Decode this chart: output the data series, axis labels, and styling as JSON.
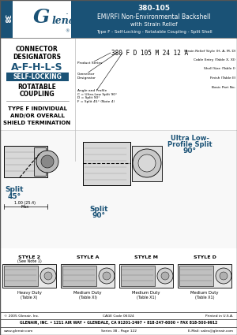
{
  "page_bg": "#ffffff",
  "header_blue": "#1a5276",
  "header_text_color": "#ffffff",
  "tab_text": "38",
  "logo_text": "Glenair",
  "title_line1": "380-105",
  "title_line2": "EMI/RFI Non-Environmental Backshell",
  "title_line3": "with Strain Relief",
  "title_line4": "Type F - Self-Locking - Rotatable Coupling - Split Shell",
  "left_heading1": "CONNECTOR",
  "left_heading2": "DESIGNATORS",
  "designators": "A-F-H-L-S",
  "self_locking_text": "SELF-LOCKING",
  "rotatable": "ROTATABLE",
  "coupling": "COUPLING",
  "type_f_line1": "TYPE F INDIVIDUAL",
  "type_f_line2": "AND/OR OVERALL",
  "type_f_line3": "SHIELD TERMINATION",
  "part_number_label": "380 F D 105 M 24 12 A",
  "pn_arrows_left": [
    "Product Series",
    "Connector\nDesignator",
    "Angle and Profile\nC = Ultra-Low Split 90°\nD = Split 90°\nF = Split 45° (Note 4)"
  ],
  "pn_arrows_right": [
    "Strain Relief Style (H, A, M, D)",
    "Cable Entry (Table X, XI)",
    "Shell Size (Table I)",
    "Finish (Table II)",
    "Basic Part No."
  ],
  "footer_copyright": "© 2005 Glenair, Inc.",
  "footer_cage": "CAGE Code 06324",
  "footer_printed": "Printed in U.S.A.",
  "footer_company": "GLENAIR, INC. • 1211 AIR WAY • GLENDALE, CA 91201-2497 • 818-247-6000 • FAX 818-500-9912",
  "footer_web": "www.glenair.com",
  "footer_series": "Series 38 - Page 122",
  "footer_email": "E-Mail: sales@glenair.com",
  "ultra_low_text": "Ultra Low-\nProfile Split\n90°",
  "split45_text": "Split\n45°",
  "split90_text": "Split\n90°",
  "style2_label": "STYLE 2",
  "style2_note": "(See Note 1)",
  "style2_duty": "Heavy Duty",
  "style2_table": "(Table X)",
  "styleA_label": "STYLE A",
  "styleA_duty": "Medium Duty",
  "styleA_table": "(Table XI)",
  "styleM_label": "STYLE M",
  "styleM_duty": "Medium Duty",
  "styleM_table": "(Table X1)",
  "styleD_label": "STYLE D",
  "styleD_duty": "Medium Duty",
  "styleD_table": "(Table X1)"
}
